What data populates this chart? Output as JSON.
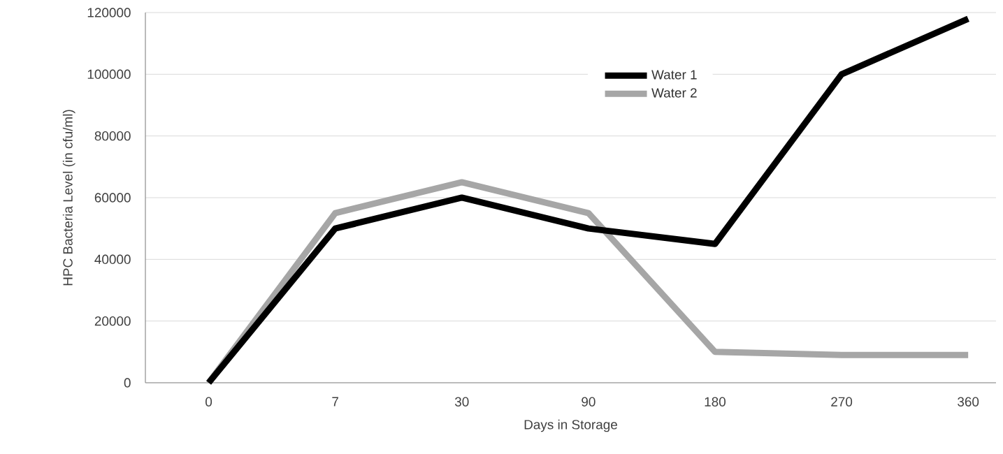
{
  "chart_data": {
    "type": "line",
    "xlabel": "Days in Storage",
    "ylabel": "HPC Bacteria Level (in cfu/ml)",
    "categories": [
      "0",
      "7",
      "30",
      "90",
      "180",
      "270",
      "360"
    ],
    "series": [
      {
        "name": "Water 1",
        "color": "#000000",
        "values": [
          0,
          50000,
          60000,
          50000,
          45000,
          100000,
          118000
        ]
      },
      {
        "name": "Water 2",
        "color": "#a6a6a6",
        "values": [
          0,
          55000,
          65000,
          55000,
          10000,
          9000,
          9000
        ]
      }
    ],
    "ylim": [
      0,
      120000
    ],
    "yticks": [
      0,
      20000,
      40000,
      60000,
      80000,
      100000,
      120000
    ],
    "grid": "y",
    "legend": "top",
    "marker": "none",
    "line_style": "solid"
  }
}
